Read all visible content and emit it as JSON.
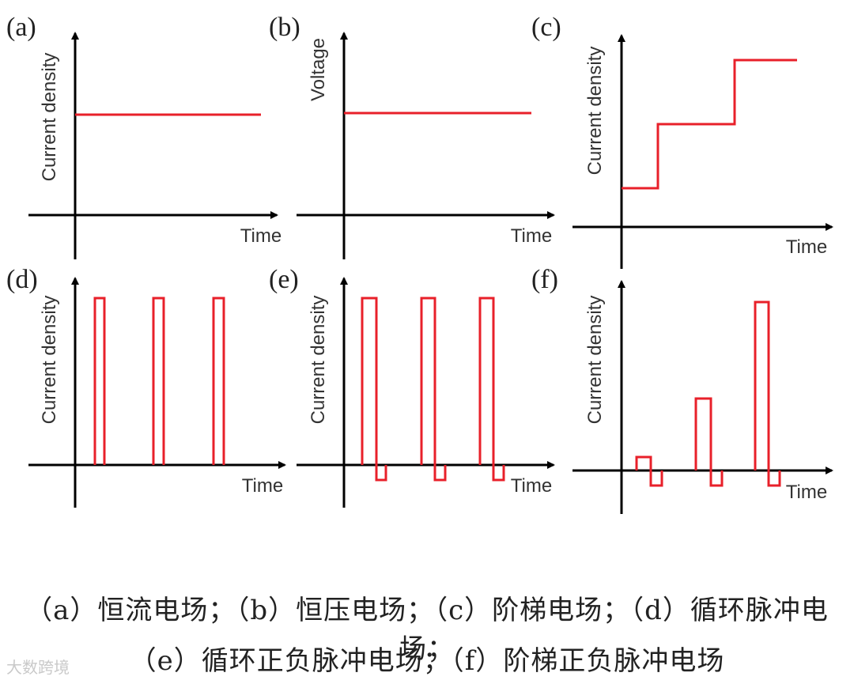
{
  "panels": [
    {
      "id": "a",
      "label": "(a)",
      "ylabel": "Current density",
      "xlabel": "Time"
    },
    {
      "id": "b",
      "label": "(b)",
      "ylabel": "Voltage",
      "xlabel": "Time"
    },
    {
      "id": "c",
      "label": "(c)",
      "ylabel": "Current density",
      "xlabel": "Time"
    },
    {
      "id": "d",
      "label": "(d)",
      "ylabel": "Current density",
      "xlabel": "Time"
    },
    {
      "id": "e",
      "label": "(e)",
      "ylabel": "Current density",
      "xlabel": "Time"
    },
    {
      "id": "f",
      "label": "(f)",
      "ylabel": "Current density",
      "xlabel": "Time"
    }
  ],
  "caption": {
    "line1": "（a）恒流电场；（b）恒压电场；（c）阶梯电场；（d）循环脉冲电场；",
    "line2": "（e）循环正负脉冲电场；（f）阶梯正负脉冲电场"
  },
  "watermark": "大数跨境",
  "colors": {
    "signal": "#e8202a",
    "axis": "#000000"
  }
}
